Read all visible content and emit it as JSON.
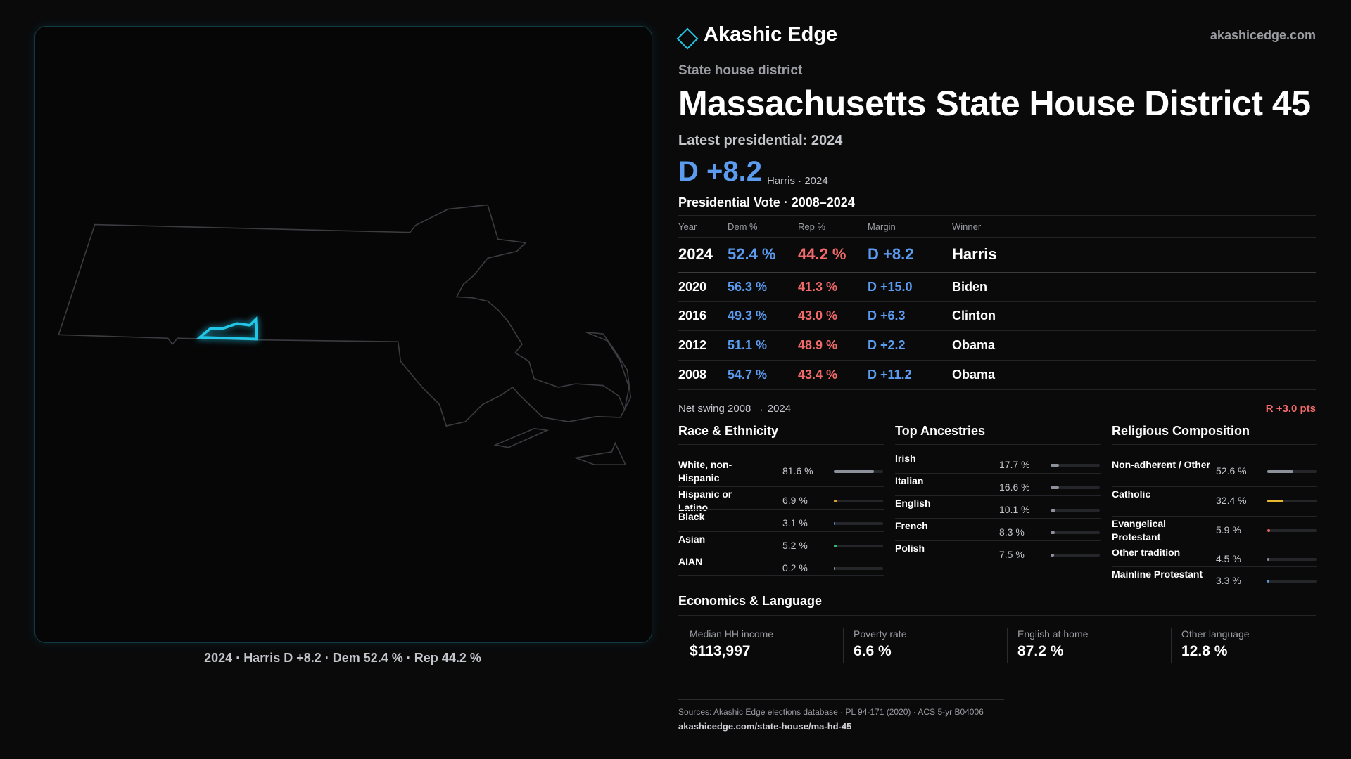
{
  "brand": {
    "name": "Akashic Edge",
    "url": "akashicedge.com"
  },
  "header": {
    "kicker": "State house district",
    "title": "Massachusetts State House District 45",
    "latest": "Latest presidential: 2024",
    "margin": "D +8.2",
    "margin_note": "Harris · 2024"
  },
  "map": {
    "caption": "2024 · Harris D +8.2 · Dem 52.4 % · Rep 44.2 %"
  },
  "vote_table": {
    "title": "Presidential Vote · 2008–2024",
    "columns": [
      "Year",
      "Dem %",
      "Rep %",
      "Margin",
      "Winner"
    ],
    "rows": [
      [
        "2024",
        "52.4 %",
        "44.2 %",
        "D +8.2",
        "Harris"
      ],
      [
        "2020",
        "56.3 %",
        "41.3 %",
        "D +15.0",
        "Biden"
      ],
      [
        "2016",
        "49.3 %",
        "43.0 %",
        "D +6.3",
        "Clinton"
      ],
      [
        "2012",
        "51.1 %",
        "48.9 %",
        "D +2.2",
        "Obama"
      ],
      [
        "2008",
        "54.7 %",
        "43.4 %",
        "D +11.2",
        "Obama"
      ]
    ]
  },
  "swing": {
    "label": "Net swing 2008 → 2024",
    "value": "R +3.0 pts"
  },
  "race": {
    "title": "Race & Ethnicity",
    "rows": [
      {
        "name": "White, non-Hispanic",
        "share": {
          "value": 81.6,
          "label": "81.6 %"
        },
        "color": "#8c919c"
      },
      {
        "name": "Hispanic or Latino",
        "share": {
          "value": 6.9,
          "label": "6.9 %"
        },
        "color": "#e0a030"
      },
      {
        "name": "Black",
        "share": {
          "value": 3.1,
          "label": "3.1 %"
        },
        "color": "#5b7fe0"
      },
      {
        "name": "Asian",
        "share": {
          "value": 5.2,
          "label": "5.2 %"
        },
        "color": "#3cb878"
      },
      {
        "name": "AIAN",
        "share": {
          "value": 0.2,
          "label": "0.2 %"
        },
        "color": "#8c919c"
      }
    ]
  },
  "ancestry": {
    "title": "Top Ancestries",
    "rows": [
      {
        "name": "Irish",
        "share": {
          "value": 17.7,
          "label": "17.7 %"
        },
        "color": "#8c919c"
      },
      {
        "name": "Italian",
        "share": {
          "value": 16.6,
          "label": "16.6 %"
        },
        "color": "#8c919c"
      },
      {
        "name": "English",
        "share": {
          "value": 10.1,
          "label": "10.1 %"
        },
        "color": "#8c919c"
      },
      {
        "name": "French",
        "share": {
          "value": 8.3,
          "label": "8.3 %"
        },
        "color": "#8c919c"
      },
      {
        "name": "Polish",
        "share": {
          "value": 7.5,
          "label": "7.5 %"
        },
        "color": "#8c919c"
      }
    ]
  },
  "religion": {
    "title": "Religious Composition",
    "rows": [
      {
        "name": "Non-adherent / Other",
        "share": {
          "value": 52.6,
          "label": "52.6 %"
        },
        "color": "#8c919c"
      },
      {
        "name": "Catholic",
        "share": {
          "value": 32.4,
          "label": "32.4 %"
        },
        "color": "#e8b830"
      },
      {
        "name": "Evangelical Protestant",
        "share": {
          "value": 5.9,
          "label": "5.9 %"
        },
        "color": "#e06060"
      },
      {
        "name": "Other tradition",
        "share": {
          "value": 4.5,
          "label": "4.5 %"
        },
        "color": "#8c919c"
      },
      {
        "name": "Mainline Protestant",
        "share": {
          "value": 3.3,
          "label": "3.3 %"
        },
        "color": "#5b9be0"
      }
    ]
  },
  "economics": {
    "title": "Economics & Language",
    "items": [
      {
        "label": "Median HH income",
        "value": "$113,997"
      },
      {
        "label": "Poverty rate",
        "value": "6.6 %"
      },
      {
        "label": "English at home",
        "value": "87.2 %"
      },
      {
        "label": "Other language",
        "value": "12.8 %"
      }
    ]
  },
  "footer": {
    "sources": "Sources: Akashic Edge elections database · PL 94-171 (2020) · ACS 5-yr B04006",
    "url": "akashicedge.com/state-house/ma-hd-45"
  }
}
